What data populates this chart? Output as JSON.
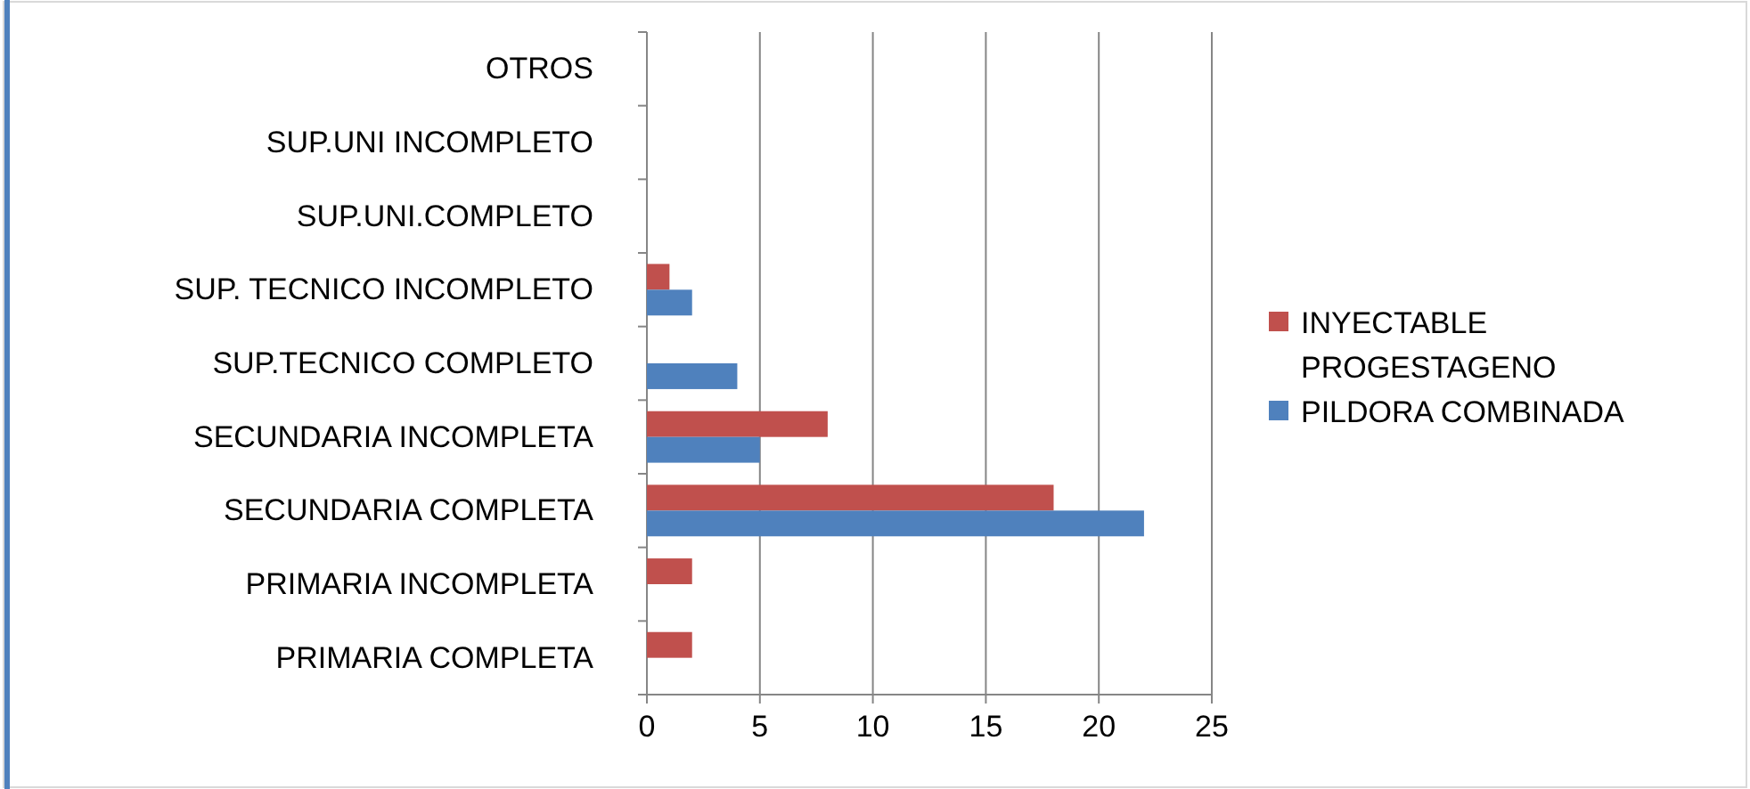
{
  "chart_data": {
    "type": "bar",
    "orientation": "horizontal",
    "categories": [
      "OTROS",
      "SUP.UNI INCOMPLETO",
      "SUP.UNI.COMPLETO",
      "SUP. TECNICO INCOMPLETO",
      "SUP.TECNICO COMPLETO",
      "SECUNDARIA INCOMPLETA",
      "SECUNDARIA COMPLETA",
      "PRIMARIA INCOMPLETA",
      "PRIMARIA COMPLETA"
    ],
    "series": [
      {
        "name": "INYECTABLE PROGESTAGENO",
        "color": "#c0504d",
        "values": [
          0,
          0,
          0,
          1,
          0,
          8,
          18,
          2,
          2
        ]
      },
      {
        "name": "PILDORA COMBINADA",
        "color": "#4f81bd",
        "values": [
          0,
          0,
          0,
          2,
          4,
          5,
          22,
          0,
          0
        ]
      }
    ],
    "xlim": [
      0,
      25
    ],
    "xticks": [
      0,
      5,
      10,
      15,
      20,
      25
    ],
    "grid": "x",
    "legend": "right"
  }
}
